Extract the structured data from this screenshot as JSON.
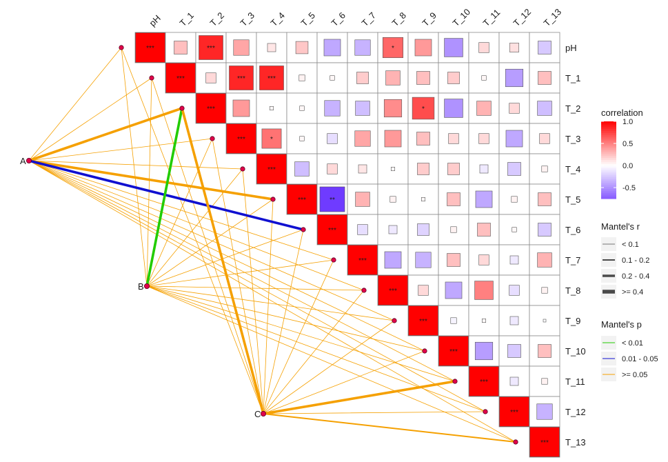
{
  "chart_data": {
    "type": "heatmap",
    "variables": [
      "pH",
      "T_1",
      "T_2",
      "T_3",
      "T_4",
      "T_5",
      "T_6",
      "T_7",
      "T_8",
      "T_9",
      "T_10",
      "T_11",
      "T_12",
      "T_13"
    ],
    "matrix": [
      [
        1.0,
        0.25,
        0.85,
        0.35,
        0.1,
        0.22,
        -0.4,
        -0.35,
        0.6,
        0.4,
        -0.5,
        0.15,
        0.12,
        -0.25
      ],
      [
        0.25,
        1.0,
        0.15,
        0.85,
        0.85,
        0.05,
        0.03,
        0.2,
        0.3,
        0.25,
        0.2,
        0.03,
        -0.45,
        0.25
      ],
      [
        0.85,
        0.15,
        1.0,
        0.4,
        0.02,
        0.03,
        -0.35,
        -0.3,
        0.45,
        0.7,
        -0.5,
        0.3,
        0.15,
        -0.3
      ],
      [
        0.35,
        0.85,
        0.4,
        1.0,
        0.55,
        0.03,
        -0.15,
        0.35,
        0.4,
        0.25,
        0.15,
        0.15,
        -0.4,
        0.15
      ],
      [
        0.1,
        0.85,
        0.02,
        0.55,
        1.0,
        -0.3,
        0.15,
        0.1,
        0.02,
        0.2,
        0.2,
        -0.1,
        -0.25,
        0.05
      ],
      [
        0.22,
        0.05,
        0.03,
        0.03,
        -0.3,
        1.0,
        -0.9,
        0.3,
        0.05,
        0.02,
        0.25,
        -0.4,
        0.05,
        0.25
      ],
      [
        -0.4,
        0.03,
        -0.35,
        -0.15,
        0.15,
        -0.9,
        1.0,
        -0.15,
        -0.1,
        -0.2,
        0.05,
        0.25,
        0.03,
        -0.25
      ],
      [
        -0.35,
        0.2,
        -0.3,
        0.35,
        0.1,
        0.3,
        -0.15,
        1.0,
        -0.4,
        -0.35,
        0.25,
        0.15,
        -0.1,
        0.3
      ],
      [
        0.6,
        0.3,
        0.45,
        0.4,
        0.02,
        0.05,
        -0.1,
        -0.4,
        1.0,
        0.15,
        -0.4,
        0.5,
        -0.15,
        0.05
      ],
      [
        0.4,
        0.25,
        0.7,
        0.25,
        0.2,
        0.02,
        -0.2,
        -0.35,
        0.15,
        1.0,
        -0.05,
        0.02,
        -0.1,
        -0.01
      ],
      [
        -0.5,
        0.2,
        -0.5,
        0.15,
        0.2,
        0.25,
        0.05,
        0.25,
        -0.4,
        -0.05,
        1.0,
        -0.45,
        -0.25,
        0.25
      ],
      [
        0.15,
        0.03,
        0.3,
        0.15,
        -0.1,
        -0.4,
        0.25,
        0.15,
        0.5,
        0.02,
        -0.45,
        1.0,
        -0.1,
        0.05
      ],
      [
        0.12,
        -0.45,
        0.15,
        -0.4,
        -0.25,
        0.05,
        0.03,
        -0.1,
        -0.15,
        -0.1,
        -0.25,
        -0.1,
        1.0,
        -0.35
      ],
      [
        -0.25,
        0.25,
        -0.3,
        0.15,
        0.05,
        0.25,
        -0.25,
        0.3,
        0.05,
        -0.01,
        0.25,
        0.05,
        -0.35,
        1.0
      ]
    ],
    "significance": [
      {
        "row": 0,
        "col": 0,
        "label": "***"
      },
      {
        "row": 0,
        "col": 2,
        "label": "***"
      },
      {
        "row": 0,
        "col": 8,
        "label": "*"
      },
      {
        "row": 1,
        "col": 1,
        "label": "***"
      },
      {
        "row": 1,
        "col": 3,
        "label": "***"
      },
      {
        "row": 1,
        "col": 4,
        "label": "***"
      },
      {
        "row": 2,
        "col": 2,
        "label": "***"
      },
      {
        "row": 2,
        "col": 9,
        "label": "*"
      },
      {
        "row": 3,
        "col": 3,
        "label": "***"
      },
      {
        "row": 3,
        "col": 4,
        "label": "*"
      },
      {
        "row": 4,
        "col": 4,
        "label": "***"
      },
      {
        "row": 5,
        "col": 5,
        "label": "***"
      },
      {
        "row": 5,
        "col": 6,
        "label": "**"
      },
      {
        "row": 6,
        "col": 6,
        "label": "***"
      },
      {
        "row": 7,
        "col": 7,
        "label": "***"
      },
      {
        "row": 8,
        "col": 8,
        "label": "***"
      },
      {
        "row": 9,
        "col": 9,
        "label": "***"
      },
      {
        "row": 10,
        "col": 10,
        "label": "***"
      },
      {
        "row": 11,
        "col": 11,
        "label": "***"
      },
      {
        "row": 12,
        "col": 12,
        "label": "***"
      },
      {
        "row": 13,
        "col": 13,
        "label": "***"
      }
    ],
    "groups": [
      "A",
      "B",
      "C"
    ],
    "mantel_links": [
      {
        "from": "A",
        "to": "pH",
        "r_class": "< 0.1",
        "p_class": ">= 0.05"
      },
      {
        "from": "A",
        "to": "T_1",
        "r_class": "< 0.1",
        "p_class": ">= 0.05"
      },
      {
        "from": "A",
        "to": "T_2",
        "r_class": "0.2 - 0.4",
        "p_class": ">= 0.05"
      },
      {
        "from": "A",
        "to": "T_3",
        "r_class": "< 0.1",
        "p_class": ">= 0.05"
      },
      {
        "from": "A",
        "to": "T_4",
        "r_class": "< 0.1",
        "p_class": ">= 0.05"
      },
      {
        "from": "A",
        "to": "T_5",
        "r_class": "0.2 - 0.4",
        "p_class": ">= 0.05"
      },
      {
        "from": "A",
        "to": "T_6",
        "r_class": "0.2 - 0.4",
        "p_class": "0.01 - 0.05"
      },
      {
        "from": "A",
        "to": "T_7",
        "r_class": "< 0.1",
        "p_class": ">= 0.05"
      },
      {
        "from": "A",
        "to": "T_8",
        "r_class": "< 0.1",
        "p_class": ">= 0.05"
      },
      {
        "from": "A",
        "to": "T_9",
        "r_class": "< 0.1",
        "p_class": ">= 0.05"
      },
      {
        "from": "A",
        "to": "T_10",
        "r_class": "< 0.1",
        "p_class": ">= 0.05"
      },
      {
        "from": "A",
        "to": "T_11",
        "r_class": "< 0.1",
        "p_class": ">= 0.05"
      },
      {
        "from": "A",
        "to": "T_12",
        "r_class": "< 0.1",
        "p_class": ">= 0.05"
      },
      {
        "from": "A",
        "to": "T_13",
        "r_class": "< 0.1",
        "p_class": ">= 0.05"
      },
      {
        "from": "B",
        "to": "pH",
        "r_class": "< 0.1",
        "p_class": ">= 0.05"
      },
      {
        "from": "B",
        "to": "T_1",
        "r_class": "< 0.1",
        "p_class": ">= 0.05"
      },
      {
        "from": "B",
        "to": "T_2",
        "r_class": "0.2 - 0.4",
        "p_class": "< 0.01"
      },
      {
        "from": "B",
        "to": "T_3",
        "r_class": "< 0.1",
        "p_class": ">= 0.05"
      },
      {
        "from": "B",
        "to": "T_4",
        "r_class": "< 0.1",
        "p_class": ">= 0.05"
      },
      {
        "from": "B",
        "to": "T_5",
        "r_class": "< 0.1",
        "p_class": ">= 0.05"
      },
      {
        "from": "B",
        "to": "T_6",
        "r_class": "< 0.1",
        "p_class": ">= 0.05"
      },
      {
        "from": "B",
        "to": "T_7",
        "r_class": "< 0.1",
        "p_class": ">= 0.05"
      },
      {
        "from": "B",
        "to": "T_8",
        "r_class": "< 0.1",
        "p_class": ">= 0.05"
      },
      {
        "from": "B",
        "to": "T_9",
        "r_class": "< 0.1",
        "p_class": ">= 0.05"
      },
      {
        "from": "B",
        "to": "T_10",
        "r_class": "< 0.1",
        "p_class": ">= 0.05"
      },
      {
        "from": "B",
        "to": "T_11",
        "r_class": "< 0.1",
        "p_class": ">= 0.05"
      },
      {
        "from": "B",
        "to": "T_12",
        "r_class": "< 0.1",
        "p_class": ">= 0.05"
      },
      {
        "from": "B",
        "to": "T_13",
        "r_class": "< 0.1",
        "p_class": ">= 0.05"
      },
      {
        "from": "C",
        "to": "pH",
        "r_class": "< 0.1",
        "p_class": ">= 0.05"
      },
      {
        "from": "C",
        "to": "T_1",
        "r_class": "< 0.1",
        "p_class": ">= 0.05"
      },
      {
        "from": "C",
        "to": "T_2",
        "r_class": "0.2 - 0.4",
        "p_class": ">= 0.05"
      },
      {
        "from": "C",
        "to": "T_3",
        "r_class": "< 0.1",
        "p_class": ">= 0.05"
      },
      {
        "from": "C",
        "to": "T_4",
        "r_class": "< 0.1",
        "p_class": ">= 0.05"
      },
      {
        "from": "C",
        "to": "T_5",
        "r_class": "< 0.1",
        "p_class": ">= 0.05"
      },
      {
        "from": "C",
        "to": "T_6",
        "r_class": "< 0.1",
        "p_class": ">= 0.05"
      },
      {
        "from": "C",
        "to": "T_7",
        "r_class": "< 0.1",
        "p_class": ">= 0.05"
      },
      {
        "from": "C",
        "to": "T_8",
        "r_class": "< 0.1",
        "p_class": ">= 0.05"
      },
      {
        "from": "C",
        "to": "T_9",
        "r_class": "< 0.1",
        "p_class": ">= 0.05"
      },
      {
        "from": "C",
        "to": "T_10",
        "r_class": "< 0.1",
        "p_class": ">= 0.05"
      },
      {
        "from": "C",
        "to": "T_11",
        "r_class": "0.2 - 0.4",
        "p_class": ">= 0.05"
      },
      {
        "from": "C",
        "to": "T_12",
        "r_class": "< 0.1",
        "p_class": ">= 0.05"
      },
      {
        "from": "C",
        "to": "T_13",
        "r_class": "0.1 - 0.2",
        "p_class": ">= 0.05"
      }
    ],
    "color_scale": {
      "title": "correlation",
      "ticks": [
        "1.0",
        "0.5",
        "0.0",
        "-0.5"
      ],
      "tick_values": [
        1.0,
        0.5,
        0.0,
        -0.5
      ],
      "range": [
        -0.75,
        1.0
      ],
      "colors": {
        "positive": "#ff0000",
        "zero": "#ffffff",
        "negative": "#6f3bff"
      }
    },
    "legend_r": {
      "title": "Mantel's r",
      "items": [
        {
          "label": "< 0.1",
          "width_class": 1
        },
        {
          "label": "0.1 - 0.2",
          "width_class": 2
        },
        {
          "label": "0.2 - 0.4",
          "width_class": 3
        },
        {
          "label": ">= 0.4",
          "width_class": 4
        }
      ]
    },
    "legend_p": {
      "title": "Mantel's p",
      "items": [
        {
          "label": "< 0.01",
          "color": "#22cc00"
        },
        {
          "label": "0.01 - 0.05",
          "color": "#1010d0"
        },
        {
          "label": ">= 0.05",
          "color": "#f5a000"
        }
      ]
    },
    "legend_placement": "right"
  }
}
